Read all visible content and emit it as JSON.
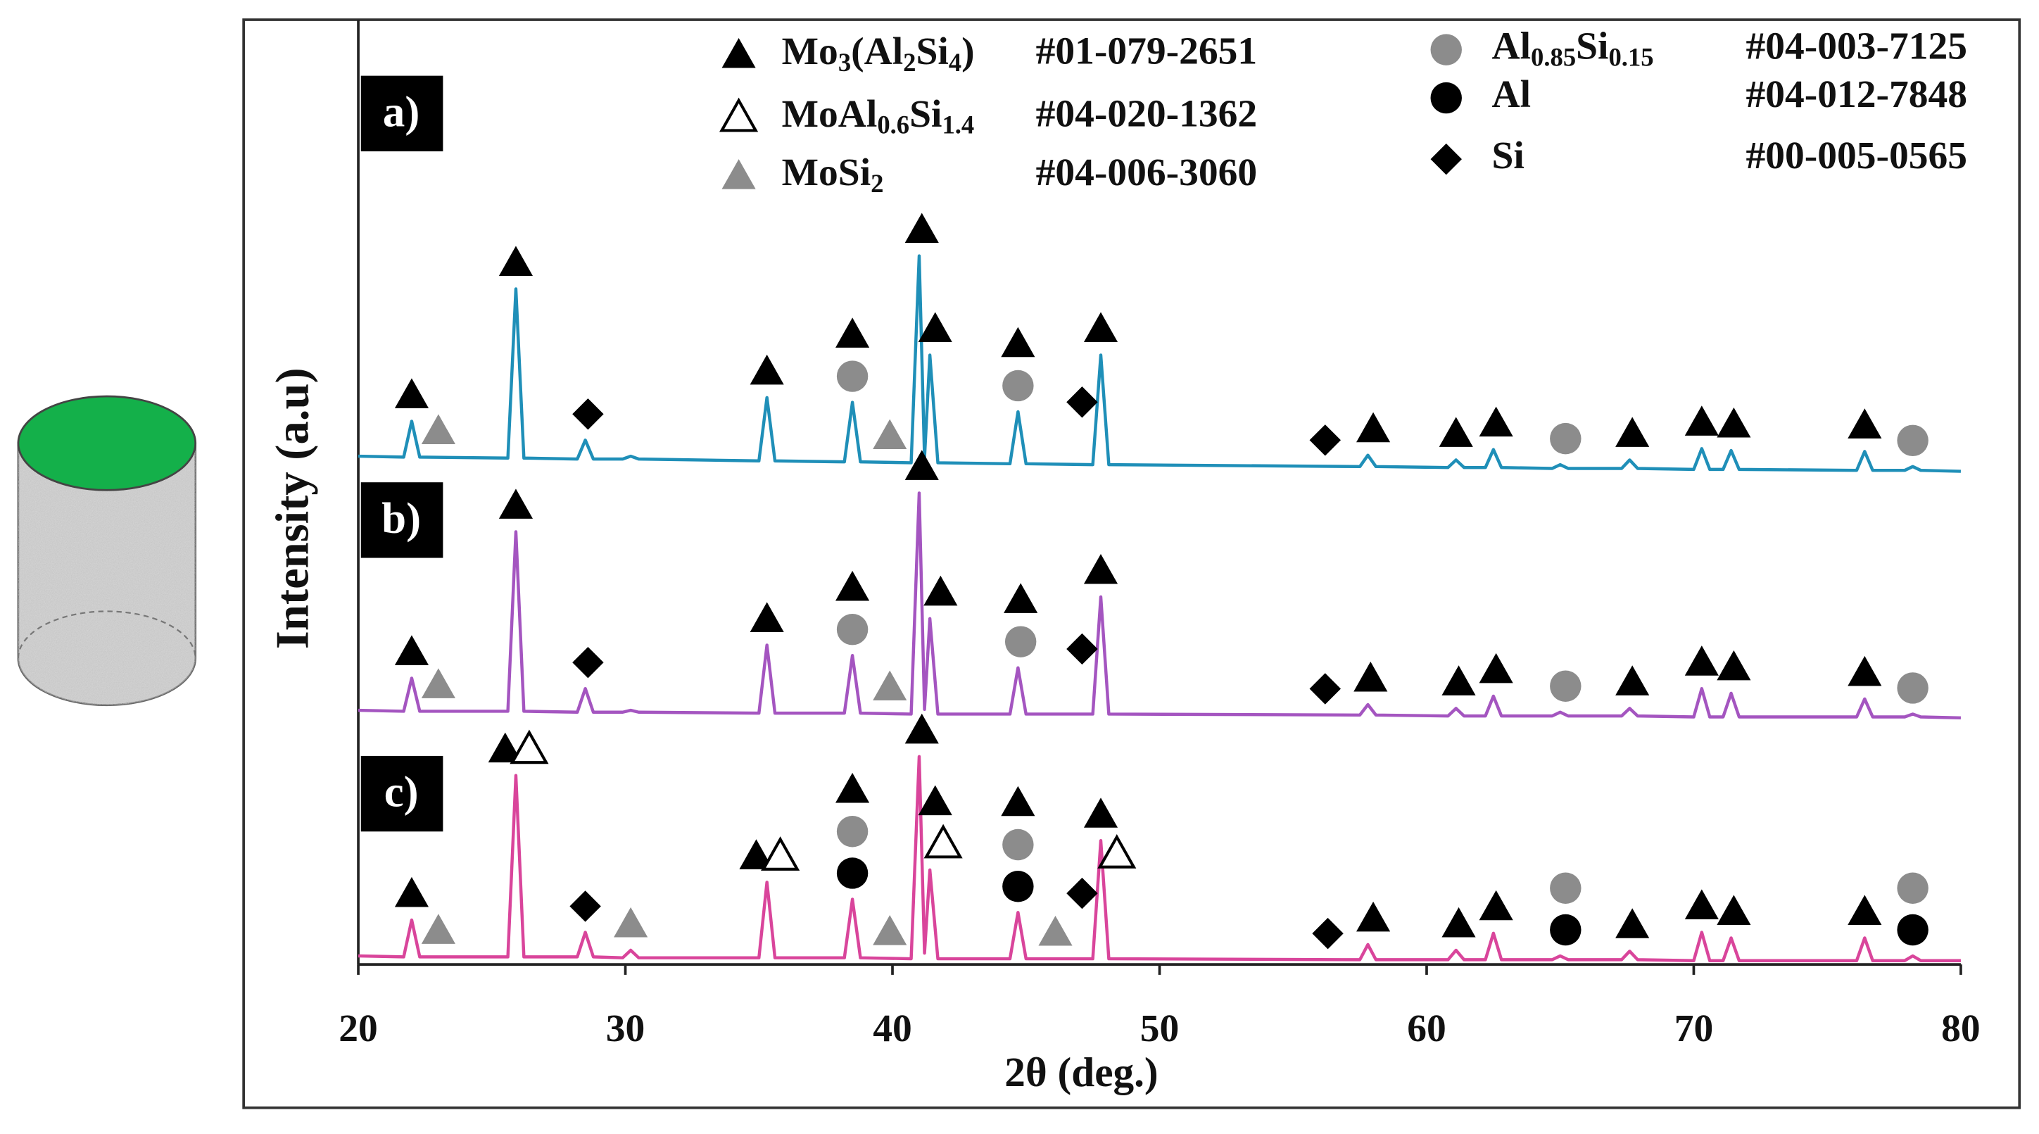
{
  "chart_data": {
    "type": "line",
    "x_label": "2θ (deg.)",
    "y_label": "Intensity (a.u)",
    "xlim": [
      20,
      80
    ],
    "xticks": [
      20,
      30,
      40,
      50,
      60,
      70,
      80
    ],
    "ylim": [
      0,
      100
    ],
    "phases": [
      {
        "name": "Mo3(Al2Si4)",
        "code": "#01-079-2651",
        "marker": "triangle",
        "color": "#000000"
      },
      {
        "name": "MoAl0.6Si1.4",
        "code": "#04-020-1362",
        "marker": "triangle",
        "color": "none"
      },
      {
        "name": "MoSi2",
        "code": "#04-006-3060",
        "marker": "triangle",
        "color": "#8c8c8c"
      },
      {
        "name": "Al0.85Si0.15",
        "code": "#04-003-7125",
        "marker": "circle",
        "color": "#8c8c8c"
      },
      {
        "name": "Al",
        "code": "#04-012-7848",
        "marker": "circle",
        "color": "#000000"
      },
      {
        "name": "Si",
        "code": "#00-005-0565",
        "marker": "diamond",
        "color": "#000000"
      }
    ],
    "x": [
      20,
      21.7,
      22,
      22.3,
      25.6,
      25.9,
      26.2,
      28.2,
      28.5,
      28.8,
      29.9,
      30.2,
      30.5,
      35,
      35.3,
      35.6,
      38.2,
      38.5,
      38.8,
      40.7,
      41,
      41.2,
      41.4,
      41.7,
      44.4,
      44.7,
      45,
      47.5,
      47.8,
      48.1,
      57.5,
      57.8,
      58.1,
      60.8,
      61.1,
      61.4,
      62.2,
      62.5,
      62.8,
      64.7,
      65,
      65.3,
      67.3,
      67.6,
      67.9,
      70,
      70.3,
      70.6,
      71.1,
      71.4,
      71.7,
      76.1,
      76.4,
      76.7,
      77.9,
      78.2,
      78.5,
      80
    ],
    "series": [
      {
        "name": "a)",
        "color": "#1f8fb8",
        "values": [
          53.8,
          53.7,
          57.5,
          53.7,
          53.6,
          71.5,
          53.6,
          53.5,
          55.5,
          53.5,
          53.5,
          53.8,
          53.5,
          53.3,
          60,
          53.3,
          53.2,
          59.5,
          53.2,
          53.1,
          75,
          53.6,
          64.5,
          53.1,
          53,
          58.5,
          53,
          52.9,
          64.5,
          52.9,
          52.7,
          53.9,
          52.7,
          52.6,
          53.4,
          52.6,
          52.6,
          54.5,
          52.6,
          52.5,
          52.9,
          52.5,
          52.5,
          53.4,
          52.5,
          52.4,
          54.6,
          52.4,
          52.4,
          54.4,
          52.4,
          52.3,
          54.3,
          52.3,
          52.3,
          52.7,
          52.3,
          52.2
        ],
        "markers": [
          {
            "x": 22,
            "phase": 0
          },
          {
            "x": 23,
            "phase": 2
          },
          {
            "x": 25.9,
            "phase": 0
          },
          {
            "x": 28.6,
            "phase": 5
          },
          {
            "x": 35.3,
            "phase": 0
          },
          {
            "x": 38.5,
            "phase": 3
          },
          {
            "x": 38.5,
            "phase": 0
          },
          {
            "x": 39.9,
            "phase": 2
          },
          {
            "x": 41.1,
            "phase": 0
          },
          {
            "x": 41.6,
            "phase": 0
          },
          {
            "x": 44.7,
            "phase": 3
          },
          {
            "x": 44.7,
            "phase": 0
          },
          {
            "x": 47.1,
            "phase": 5
          },
          {
            "x": 47.8,
            "phase": 0
          },
          {
            "x": 56.2,
            "phase": 5
          },
          {
            "x": 58,
            "phase": 0
          },
          {
            "x": 61.1,
            "phase": 0
          },
          {
            "x": 62.6,
            "phase": 0
          },
          {
            "x": 65.2,
            "phase": 3
          },
          {
            "x": 67.7,
            "phase": 0
          },
          {
            "x": 70.3,
            "phase": 0
          },
          {
            "x": 71.5,
            "phase": 0
          },
          {
            "x": 76.4,
            "phase": 0
          },
          {
            "x": 78.2,
            "phase": 3
          }
        ]
      },
      {
        "name": "b)",
        "color": "#a455c0",
        "values": [
          26.9,
          26.8,
          30.3,
          26.8,
          26.8,
          45.8,
          26.8,
          26.7,
          29.2,
          26.7,
          26.7,
          26.9,
          26.7,
          26.6,
          33.8,
          26.6,
          26.6,
          32.7,
          26.6,
          26.5,
          49.9,
          27,
          36.6,
          26.5,
          26.5,
          31.4,
          26.5,
          26.5,
          38.9,
          26.5,
          26.4,
          27.5,
          26.4,
          26.3,
          27.1,
          26.3,
          26.3,
          28.4,
          26.3,
          26.3,
          26.7,
          26.3,
          26.3,
          27.1,
          26.3,
          26.2,
          29.2,
          26.2,
          26.2,
          28.7,
          26.2,
          26.2,
          28.1,
          26.2,
          26.2,
          26.5,
          26.2,
          26.1
        ],
        "markers": [
          {
            "x": 22,
            "phase": 0
          },
          {
            "x": 23,
            "phase": 2
          },
          {
            "x": 25.9,
            "phase": 0
          },
          {
            "x": 28.6,
            "phase": 5
          },
          {
            "x": 35.3,
            "phase": 0
          },
          {
            "x": 38.5,
            "phase": 3
          },
          {
            "x": 38.5,
            "phase": 0
          },
          {
            "x": 39.9,
            "phase": 2
          },
          {
            "x": 41.1,
            "phase": 0
          },
          {
            "x": 41.8,
            "phase": 0
          },
          {
            "x": 44.8,
            "phase": 3
          },
          {
            "x": 44.8,
            "phase": 0
          },
          {
            "x": 47.1,
            "phase": 5
          },
          {
            "x": 47.8,
            "phase": 0
          },
          {
            "x": 56.2,
            "phase": 5
          },
          {
            "x": 57.9,
            "phase": 0
          },
          {
            "x": 61.2,
            "phase": 0
          },
          {
            "x": 62.6,
            "phase": 0
          },
          {
            "x": 65.2,
            "phase": 3
          },
          {
            "x": 67.7,
            "phase": 0
          },
          {
            "x": 70.3,
            "phase": 0
          },
          {
            "x": 71.5,
            "phase": 0
          },
          {
            "x": 76.4,
            "phase": 0
          },
          {
            "x": 78.2,
            "phase": 3
          }
        ]
      },
      {
        "name": "c)",
        "color": "#d9459b",
        "values": [
          0.9,
          0.8,
          4.7,
          0.8,
          0.8,
          20,
          0.8,
          0.8,
          3.4,
          0.8,
          0.7,
          1.5,
          0.7,
          0.7,
          8.7,
          0.7,
          0.7,
          6.9,
          0.7,
          0.6,
          22,
          1.2,
          10,
          0.6,
          0.6,
          5.5,
          0.6,
          0.6,
          13.1,
          0.6,
          0.5,
          2.1,
          0.5,
          0.5,
          1.5,
          0.5,
          0.5,
          3.3,
          0.5,
          0.5,
          0.9,
          0.5,
          0.5,
          1.4,
          0.5,
          0.4,
          3.4,
          0.4,
          0.4,
          2.8,
          0.4,
          0.4,
          2.8,
          0.4,
          0.4,
          0.9,
          0.4,
          0.4
        ],
        "markers": [
          {
            "x": 22,
            "phase": 0
          },
          {
            "x": 23,
            "phase": 2
          },
          {
            "x": 25.5,
            "phase": 0
          },
          {
            "x": 26.4,
            "phase": 1
          },
          {
            "x": 28.5,
            "phase": 5
          },
          {
            "x": 30.2,
            "phase": 2
          },
          {
            "x": 34.9,
            "phase": 0
          },
          {
            "x": 35.8,
            "phase": 1
          },
          {
            "x": 38.5,
            "phase": 4
          },
          {
            "x": 38.5,
            "phase": 3
          },
          {
            "x": 38.5,
            "phase": 0
          },
          {
            "x": 39.9,
            "phase": 2
          },
          {
            "x": 41.1,
            "phase": 0
          },
          {
            "x": 41.9,
            "phase": 1
          },
          {
            "x": 41.6,
            "phase": 0
          },
          {
            "x": 44.7,
            "phase": 4
          },
          {
            "x": 44.7,
            "phase": 3
          },
          {
            "x": 44.7,
            "phase": 0
          },
          {
            "x": 46.1,
            "phase": 2
          },
          {
            "x": 47.1,
            "phase": 5
          },
          {
            "x": 47.8,
            "phase": 0
          },
          {
            "x": 48.4,
            "phase": 1
          },
          {
            "x": 56.3,
            "phase": 5
          },
          {
            "x": 58,
            "phase": 0
          },
          {
            "x": 61.2,
            "phase": 0
          },
          {
            "x": 62.6,
            "phase": 0
          },
          {
            "x": 65.2,
            "phase": 4
          },
          {
            "x": 65.2,
            "phase": 3
          },
          {
            "x": 67.7,
            "phase": 0
          },
          {
            "x": 70.3,
            "phase": 0
          },
          {
            "x": 71.5,
            "phase": 0
          },
          {
            "x": 76.4,
            "phase": 0
          },
          {
            "x": 78.2,
            "phase": 4
          },
          {
            "x": 78.2,
            "phase": 3
          }
        ]
      }
    ]
  }
}
